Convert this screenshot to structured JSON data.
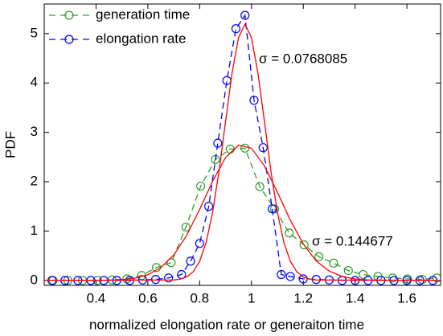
{
  "chart_data": {
    "type": "line",
    "x_label": "normalized elongation rate or generaiton time",
    "y_label": "PDF",
    "xlim": [
      0.2,
      1.73
    ],
    "ylim": [
      -0.1,
      5.6
    ],
    "xticks": [
      0.4,
      0.6,
      0.8,
      1,
      1.2,
      1.4,
      1.6
    ],
    "yticks": [
      0,
      1,
      2,
      3,
      4,
      5
    ],
    "grid": false,
    "legend": "upper left",
    "annotations": [
      "σ = 0.0768085",
      "σ = 0.144677"
    ],
    "series": [
      {
        "name": "generation time",
        "color": "#2ca02c",
        "line_style": "dashed",
        "marker": true,
        "x": [
          0.234,
          0.291,
          0.348,
          0.405,
          0.462,
          0.519,
          0.576,
          0.633,
          0.69,
          0.747,
          0.804,
          0.861,
          0.918,
          0.975,
          1.032,
          1.089,
          1.146,
          1.203,
          1.26,
          1.317,
          1.374,
          1.431,
          1.488,
          1.545,
          1.602,
          1.659,
          1.716
        ],
        "values": [
          0,
          0,
          0,
          0,
          0.01,
          0.03,
          0.1,
          0.26,
          0.36,
          1.08,
          1.91,
          2.45,
          2.66,
          2.68,
          1.9,
          1.45,
          0.96,
          0.72,
          0.48,
          0.35,
          0.2,
          0.12,
          0.08,
          0.05,
          0.03,
          0.02,
          0.05
        ]
      },
      {
        "name": "elongation rate",
        "color": "#0000ff",
        "line_style": "dashed",
        "marker": true,
        "x": [
          0.23,
          0.28,
          0.33,
          0.38,
          0.43,
          0.48,
          0.53,
          0.58,
          0.63,
          0.68,
          0.73,
          0.765,
          0.8,
          0.835,
          0.87,
          0.905,
          0.94,
          0.975,
          1.01,
          1.045,
          1.08,
          1.115,
          1.15,
          1.2,
          1.25,
          1.3,
          1.35,
          1.4,
          1.45,
          1.5,
          1.55,
          1.6,
          1.65,
          1.7
        ],
        "values": [
          0,
          0,
          0,
          0,
          0,
          0,
          0,
          0.01,
          0.02,
          0.05,
          0.12,
          0.39,
          0.75,
          1.5,
          2.78,
          4.05,
          5.1,
          5.37,
          3.65,
          2.69,
          1.45,
          0.12,
          0.08,
          0.03,
          0.02,
          0.01,
          0,
          0,
          0,
          0,
          0,
          0,
          0,
          0
        ]
      },
      {
        "color": "#ff0000",
        "line_style": "solid",
        "marker": false,
        "x": [
          0.2,
          0.7,
          0.725,
          0.75,
          0.775,
          0.8,
          0.825,
          0.85,
          0.875,
          0.9,
          0.925,
          0.95,
          0.975,
          1.0,
          1.025,
          1.05,
          1.075,
          1.1,
          1.125,
          1.15,
          1.175,
          1.2,
          1.225,
          1.25,
          1.75
        ],
        "values": [
          0,
          0.009,
          0.026,
          0.071,
          0.175,
          0.39,
          0.77,
          1.38,
          2.22,
          3.22,
          4.2,
          4.92,
          5.19,
          4.92,
          4.2,
          3.22,
          2.22,
          1.38,
          0.77,
          0.39,
          0.175,
          0.071,
          0.026,
          0.009,
          0
        ]
      },
      {
        "color": "#ff0000",
        "line_style": "solid",
        "marker": false,
        "x": [
          0.2,
          0.3,
          0.4,
          0.45,
          0.5,
          0.55,
          0.6,
          0.65,
          0.7,
          0.75,
          0.8,
          0.85,
          0.9,
          0.95,
          1.0,
          1.05,
          1.1,
          1.15,
          1.2,
          1.25,
          1.3,
          1.35,
          1.4,
          1.45,
          1.5,
          1.6,
          1.75
        ],
        "values": [
          0,
          0,
          0.001,
          0.005,
          0.016,
          0.045,
          0.115,
          0.258,
          0.515,
          0.914,
          1.44,
          2.01,
          2.49,
          2.74,
          2.68,
          2.32,
          1.79,
          1.22,
          0.74,
          0.395,
          0.19,
          0.08,
          0.03,
          0.01,
          0.003,
          0,
          0
        ]
      }
    ]
  }
}
